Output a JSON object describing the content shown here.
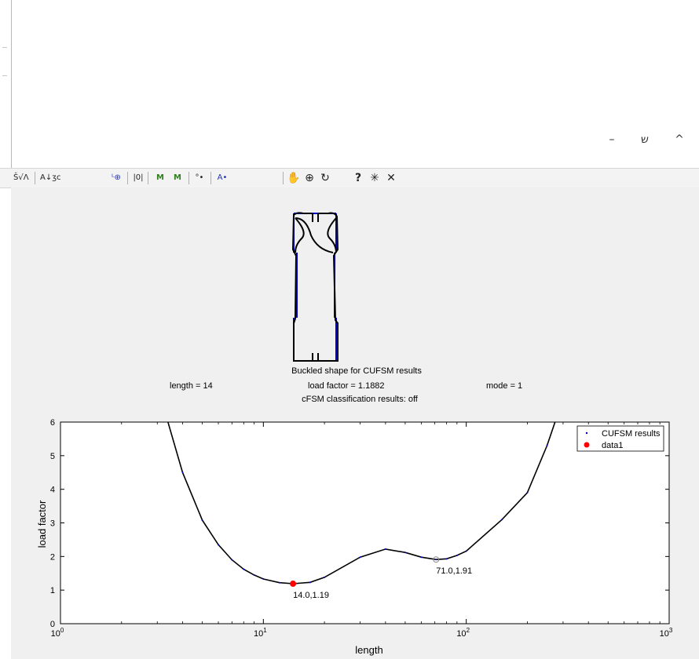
{
  "window": {
    "minimize_icon": "minimize-icon",
    "restore_icon": "restore-icon",
    "collapse_icon": "chevron-up-icon",
    "minimize_glyph": "–",
    "restore_glyph": "ש",
    "collapse_glyph": "^"
  },
  "toolbar": {
    "btn1": "Š√Λ",
    "btn2": "A↓ʒc",
    "btn3": "ᴸ⊕",
    "btn4": "|0|",
    "btn5": "M",
    "btn6": "M",
    "btn7": "°•",
    "btn8": "A•",
    "pan": "✋",
    "zoom": "⊕",
    "rotate": "↻",
    "help": "?",
    "datacursor": "✳",
    "close": "✕",
    "colors": {
      "accent": "#2233bb",
      "green": "#2f7f1f"
    }
  },
  "shape": {
    "title": "Buckled shape for CUFSM results",
    "length_text": "length = 14",
    "load_factor_text": "load factor = 1.1882",
    "mode_text": "mode = 1",
    "classification_text": "cFSM classification results: off",
    "colors": {
      "deformed": "#000000",
      "undeformed": "#0000cc"
    }
  },
  "chart_data": {
    "type": "line",
    "xscale": "log",
    "xlabel": "length",
    "ylabel": "load factor",
    "xlim": [
      1,
      1000
    ],
    "ylim": [
      0,
      6
    ],
    "x_ticks": [
      "10^0",
      "10^1",
      "10^2",
      "10^3"
    ],
    "y_ticks": [
      "0",
      "1",
      "2",
      "3",
      "4",
      "5",
      "6"
    ],
    "legend_position": "top-right",
    "series": [
      {
        "name": "CUFSM results",
        "color": "#000000",
        "x": [
          3.1,
          4,
          5,
          6,
          7,
          8,
          9,
          10,
          12,
          14,
          17,
          20,
          30,
          40,
          50,
          60,
          71,
          80,
          90,
          100,
          150,
          200,
          250,
          300
        ],
        "y": [
          6.8,
          4.5,
          3.08,
          2.35,
          1.9,
          1.62,
          1.45,
          1.33,
          1.22,
          1.19,
          1.23,
          1.38,
          1.98,
          2.22,
          2.12,
          1.98,
          1.91,
          1.93,
          2.03,
          2.16,
          3.1,
          3.9,
          5.3,
          6.7
        ]
      },
      {
        "name": "data1",
        "color": "#ff0000",
        "x": [
          14.0
        ],
        "y": [
          1.19
        ]
      }
    ],
    "annotations": [
      {
        "text": "14.0,1.19",
        "x": 14.0,
        "y": 1.19
      },
      {
        "text": "71.0,1.91",
        "x": 71.0,
        "y": 1.91
      }
    ]
  }
}
